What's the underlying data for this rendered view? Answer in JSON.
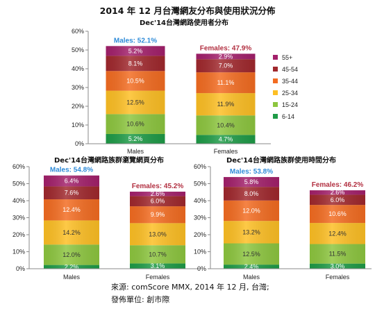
{
  "title": "2014 年 12 月台灣網友分布與使用狀況分佈",
  "chart_data": [
    {
      "type": "bar",
      "stacked": true,
      "title": "Dec'14台灣網路使用者分布",
      "categories": [
        "Males",
        "Females"
      ],
      "series": [
        {
          "name": "6-14",
          "color": "#1E9B47",
          "values": [
            5.2,
            4.7
          ]
        },
        {
          "name": "15-24",
          "color": "#8DC63F",
          "values": [
            10.6,
            10.4
          ]
        },
        {
          "name": "25-34",
          "color": "#FDBF24",
          "values": [
            12.5,
            11.9
          ]
        },
        {
          "name": "35-44",
          "color": "#F36C21",
          "values": [
            10.5,
            11.1
          ]
        },
        {
          "name": "45-54",
          "color": "#A0282D",
          "values": [
            8.1,
            7.0
          ]
        },
        {
          "name": "55+",
          "color": "#A3206B",
          "values": [
            5.2,
            2.9
          ]
        }
      ],
      "total_labels": [
        "Males: 52.1%",
        "Females: 47.9%"
      ],
      "total_label_colors": [
        "#2E8BD8",
        "#B23041"
      ],
      "ylim": [
        0,
        60
      ],
      "yticks": [
        0,
        10,
        20,
        30,
        40,
        50,
        60
      ],
      "ytick_labels": [
        "0%",
        "10%",
        "20%",
        "30%",
        "40%",
        "50%",
        "60%"
      ],
      "grid": false,
      "legend": "right"
    },
    {
      "type": "bar",
      "stacked": true,
      "title": "Dec'14台灣網路族群瀏覽網頁分布",
      "categories": [
        "Males",
        "Females"
      ],
      "series": [
        {
          "color": "#1E9B47",
          "values": [
            2.2,
            3.1
          ]
        },
        {
          "color": "#8DC63F",
          "values": [
            12.0,
            10.7
          ]
        },
        {
          "color": "#FDBF24",
          "values": [
            14.2,
            13.0
          ]
        },
        {
          "color": "#F36C21",
          "values": [
            12.4,
            9.9
          ]
        },
        {
          "color": "#A0282D",
          "values": [
            7.6,
            6.0
          ]
        },
        {
          "color": "#A3206B",
          "values": [
            6.4,
            2.6
          ]
        }
      ],
      "total_labels": [
        "Males: 54.8%",
        "Females: 45.2%"
      ],
      "total_label_colors": [
        "#2E8BD8",
        "#B23041"
      ],
      "ylim": [
        0,
        60
      ],
      "yticks": [
        0,
        10,
        20,
        30,
        40,
        50,
        60
      ],
      "ytick_labels": [
        "0%",
        "10%",
        "20%",
        "30%",
        "40%",
        "50%",
        "60%"
      ],
      "grid": false,
      "legend": "none"
    },
    {
      "type": "bar",
      "stacked": true,
      "title": "Dec'14台灣網路族群使用時間分布",
      "categories": [
        "Males",
        "Females"
      ],
      "series": [
        {
          "color": "#1E9B47",
          "values": [
            2.4,
            3.0
          ]
        },
        {
          "color": "#8DC63F",
          "values": [
            12.5,
            11.5
          ]
        },
        {
          "color": "#FDBF24",
          "values": [
            13.2,
            12.4
          ]
        },
        {
          "color": "#F36C21",
          "values": [
            12.0,
            10.6
          ]
        },
        {
          "color": "#A0282D",
          "values": [
            8.0,
            6.0
          ]
        },
        {
          "color": "#A3206B",
          "values": [
            5.8,
            2.6
          ]
        }
      ],
      "total_labels": [
        "Males: 53.8%",
        "Females: 46.2%"
      ],
      "total_label_colors": [
        "#2E8BD8",
        "#B23041"
      ],
      "ylim": [
        0,
        60
      ],
      "yticks": [
        0,
        10,
        20,
        30,
        40,
        50,
        60
      ],
      "ytick_labels": [
        "0%",
        "10%",
        "20%",
        "30%",
        "40%",
        "50%",
        "60%"
      ],
      "grid": false,
      "legend": "none"
    }
  ],
  "footer": {
    "source": "來源: comScore MMX, 2014 年 12 月, 台灣;",
    "publisher": "發佈單位: 創市際"
  }
}
